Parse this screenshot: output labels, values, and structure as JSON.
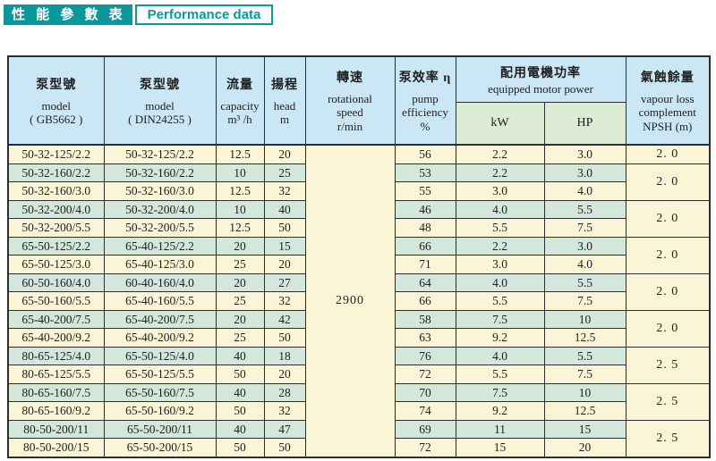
{
  "title": {
    "zh": "性 能 參 數 表",
    "en": "Performance data"
  },
  "colors": {
    "teal": "#0a989c",
    "header_blue": "#cbe7f5",
    "subheader_green": "#dcecd4",
    "row_cream": "#fbf5d8",
    "row_green": "#d3e7da",
    "border": "#2d2d2d"
  },
  "table": {
    "headers": {
      "model_gb": {
        "zh": "泵型號",
        "en": "model",
        "sub": "( GB5662 )"
      },
      "model_din": {
        "zh": "泵型號",
        "en": "model",
        "sub": "( DIN24255 )"
      },
      "capacity": {
        "zh": "流量",
        "en": "capacity",
        "unit": "m³ /h"
      },
      "head": {
        "zh": "揚程",
        "en": "head",
        "unit": "m"
      },
      "speed": {
        "zh": "轉速",
        "en": "rotational speed",
        "unit": "r/min"
      },
      "efficiency": {
        "zh": "泵效率 η",
        "en": "pump efficiency",
        "unit": "%"
      },
      "motor_power": {
        "zh": "配用電機功率",
        "en": "equipped motor power"
      },
      "kw": "kW",
      "hp": "HP",
      "npsh": {
        "zh": "氣蝕餘量",
        "en": "vapour loss complement",
        "unit": "NPSH  (m)"
      }
    },
    "speed_value": "2900",
    "rows": [
      {
        "gb": "50-32-125/2.2",
        "din": "50-32-125/2.2",
        "capacity": "12.5",
        "head": "20",
        "eff": "56",
        "kw": "2.2",
        "hp": "3.0"
      },
      {
        "gb": "50-32-160/2.2",
        "din": "50-32-160/2.2",
        "capacity": "10",
        "head": "25",
        "eff": "53",
        "kw": "2.2",
        "hp": "3.0"
      },
      {
        "gb": "50-32-160/3.0",
        "din": "50-32-160/3.0",
        "capacity": "12.5",
        "head": "32",
        "eff": "55",
        "kw": "3.0",
        "hp": "4.0"
      },
      {
        "gb": "50-32-200/4.0",
        "din": "50-32-200/4.0",
        "capacity": "10",
        "head": "40",
        "eff": "46",
        "kw": "4.0",
        "hp": "5.5"
      },
      {
        "gb": "50-32-200/5.5",
        "din": "50-32-200/5.5",
        "capacity": "12.5",
        "head": "50",
        "eff": "48",
        "kw": "5.5",
        "hp": "7.5"
      },
      {
        "gb": "65-50-125/2.2",
        "din": "65-40-125/2.2",
        "capacity": "20",
        "head": "15",
        "eff": "66",
        "kw": "2.2",
        "hp": "3.0"
      },
      {
        "gb": "65-50-125/3.0",
        "din": "65-40-125/3.0",
        "capacity": "25",
        "head": "20",
        "eff": "71",
        "kw": "3.0",
        "hp": "4.0"
      },
      {
        "gb": "60-50-160/4.0",
        "din": "60-40-160/4.0",
        "capacity": "20",
        "head": "27",
        "eff": "64",
        "kw": "4.0",
        "hp": "5.5"
      },
      {
        "gb": "65-50-160/5.5",
        "din": "65-40-160/5.5",
        "capacity": "25",
        "head": "32",
        "eff": "66",
        "kw": "5.5",
        "hp": "7.5"
      },
      {
        "gb": "65-40-200/7.5",
        "din": "65-40-200/7.5",
        "capacity": "20",
        "head": "42",
        "eff": "58",
        "kw": "7.5",
        "hp": "10"
      },
      {
        "gb": "65-40-200/9.2",
        "din": "65-40-200/9.2",
        "capacity": "25",
        "head": "50",
        "eff": "63",
        "kw": "9.2",
        "hp": "12.5"
      },
      {
        "gb": "80-65-125/4.0",
        "din": "65-50-125/4.0",
        "capacity": "40",
        "head": "18",
        "eff": "76",
        "kw": "4.0",
        "hp": "5.5"
      },
      {
        "gb": "80-65-125/5.5",
        "din": "65-50-125/5.5",
        "capacity": "50",
        "head": "20",
        "eff": "72",
        "kw": "5.5",
        "hp": "7.5"
      },
      {
        "gb": "80-65-160/7.5",
        "din": "65-50-160/7.5",
        "capacity": "40",
        "head": "28",
        "eff": "70",
        "kw": "7.5",
        "hp": "10"
      },
      {
        "gb": "80-65-160/9.2",
        "din": "65-50-160/9.2",
        "capacity": "50",
        "head": "32",
        "eff": "74",
        "kw": "9.2",
        "hp": "12.5"
      },
      {
        "gb": "80-50-200/11",
        "din": "65-50-200/11",
        "capacity": "40",
        "head": "47",
        "eff": "69",
        "kw": "11",
        "hp": "15"
      },
      {
        "gb": "80-50-200/15",
        "din": "65-50-200/15",
        "capacity": "50",
        "head": "50",
        "eff": "72",
        "kw": "15",
        "hp": "20"
      }
    ],
    "npsh_groups": [
      {
        "start": 0,
        "span": 1,
        "value": "2. 0"
      },
      {
        "start": 1,
        "span": 2,
        "value": "2. 0"
      },
      {
        "start": 3,
        "span": 2,
        "value": "2. 0"
      },
      {
        "start": 5,
        "span": 2,
        "value": "2. 0"
      },
      {
        "start": 7,
        "span": 2,
        "value": "2. 0"
      },
      {
        "start": 9,
        "span": 2,
        "value": "2. 0"
      },
      {
        "start": 11,
        "span": 2,
        "value": "2. 5"
      },
      {
        "start": 13,
        "span": 2,
        "value": "2. 5"
      },
      {
        "start": 15,
        "span": 2,
        "value": "2. 5"
      }
    ]
  }
}
